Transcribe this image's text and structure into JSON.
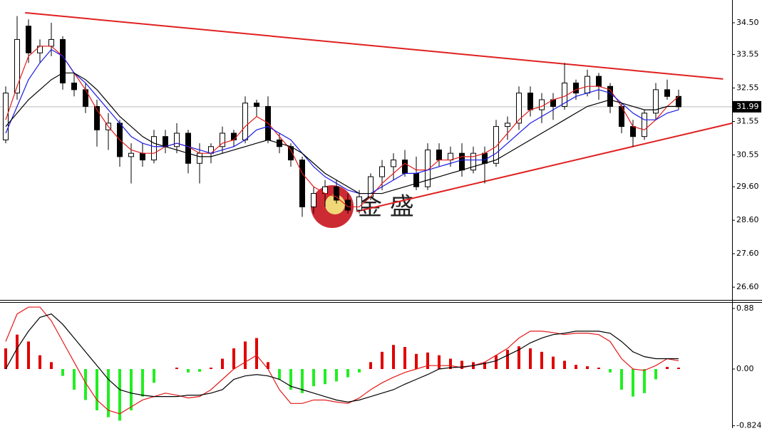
{
  "chart_data": [
    {
      "type": "candlestick",
      "open": [
        31.0,
        32.4,
        34.4,
        33.6,
        33.8,
        34.0,
        32.7,
        32.5,
        32.0,
        31.3,
        31.5,
        30.5,
        30.6,
        30.4,
        31.1,
        30.8,
        31.2,
        30.3,
        30.6,
        30.8,
        31.2,
        31.0,
        32.1,
        32.0,
        31.0,
        30.8,
        30.4,
        29.0,
        29.4,
        29.6,
        29.2,
        28.9,
        29.3,
        29.9,
        30.2,
        30.4,
        30.0,
        29.6,
        30.7,
        30.4,
        30.6,
        30.1,
        30.6,
        30.3,
        31.4,
        31.5,
        32.4,
        31.9,
        32.2,
        32.0,
        32.7,
        32.4,
        32.9,
        32.6,
        32.0,
        31.4,
        31.1,
        31.8,
        32.5,
        32.3
      ],
      "high": [
        32.6,
        34.7,
        34.6,
        34.0,
        34.5,
        34.1,
        33.0,
        32.7,
        32.2,
        31.8,
        31.6,
        30.9,
        30.9,
        31.3,
        31.3,
        31.5,
        31.3,
        30.9,
        30.9,
        31.4,
        31.3,
        32.3,
        32.2,
        32.3,
        31.2,
        30.9,
        30.5,
        29.6,
        29.8,
        29.8,
        29.4,
        29.5,
        30.0,
        30.4,
        30.6,
        30.7,
        30.5,
        30.9,
        30.9,
        30.8,
        30.9,
        30.8,
        30.8,
        31.6,
        31.7,
        32.6,
        32.6,
        32.4,
        32.4,
        33.3,
        32.8,
        33.1,
        33.0,
        32.7,
        32.1,
        31.6,
        31.9,
        32.7,
        32.8,
        32.5
      ],
      "low": [
        30.9,
        32.2,
        33.3,
        33.3,
        33.5,
        32.5,
        32.3,
        31.8,
        30.8,
        30.7,
        30.2,
        29.7,
        30.2,
        30.3,
        30.6,
        30.6,
        30.0,
        29.7,
        30.3,
        30.6,
        30.8,
        30.9,
        31.7,
        30.9,
        30.6,
        30.2,
        28.7,
        28.8,
        29.0,
        29.1,
        28.8,
        28.8,
        29.2,
        29.5,
        29.8,
        29.9,
        29.5,
        29.5,
        30.2,
        30.2,
        29.9,
        30.0,
        29.7,
        30.2,
        31.0,
        31.3,
        31.7,
        31.5,
        31.6,
        31.9,
        32.2,
        32.3,
        32.2,
        31.8,
        31.2,
        30.8,
        31.0,
        31.6,
        32.2,
        31.9
      ],
      "close": [
        32.4,
        34.0,
        33.6,
        33.8,
        34.0,
        32.7,
        32.5,
        32.0,
        31.3,
        31.5,
        30.5,
        30.6,
        30.4,
        31.1,
        30.8,
        31.2,
        30.3,
        30.6,
        30.8,
        31.2,
        31.0,
        32.1,
        32.0,
        31.0,
        30.8,
        30.4,
        29.0,
        29.4,
        29.6,
        29.2,
        28.9,
        29.3,
        29.9,
        30.2,
        30.4,
        30.0,
        29.6,
        30.7,
        30.4,
        30.6,
        30.1,
        30.6,
        30.3,
        31.4,
        31.5,
        32.4,
        31.9,
        32.2,
        32.0,
        32.7,
        32.4,
        32.9,
        32.6,
        32.0,
        31.4,
        31.1,
        31.8,
        32.5,
        32.3,
        31.99
      ],
      "up_color": "#ffffff",
      "down_color": "#000000",
      "series": [
        {
          "color": "#e41a1a",
          "values": [
            31.6,
            32.6,
            33.5,
            33.8,
            33.8,
            33.5,
            33.0,
            32.5,
            31.9,
            31.4,
            31.0,
            30.7,
            30.6,
            30.6,
            30.8,
            30.9,
            30.8,
            30.6,
            30.6,
            30.9,
            31.0,
            31.4,
            31.7,
            31.5,
            31.1,
            30.7,
            30.0,
            29.6,
            29.4,
            29.3,
            29.0,
            29.0,
            29.3,
            29.7,
            30.0,
            30.3,
            30.1,
            30.1,
            30.4,
            30.4,
            30.5,
            30.5,
            30.6,
            30.8,
            31.2,
            31.6,
            31.9,
            32.0,
            32.2,
            32.3,
            32.5,
            32.6,
            32.6,
            32.5,
            32.0,
            31.4,
            31.3,
            31.6,
            32.0,
            32.3
          ]
        },
        {
          "color": "#1a1ae4",
          "values": [
            31.2,
            32.0,
            32.8,
            33.3,
            33.7,
            33.5,
            33.0,
            32.7,
            32.3,
            31.9,
            31.5,
            31.1,
            30.9,
            30.8,
            30.8,
            30.9,
            30.8,
            30.7,
            30.6,
            30.7,
            30.8,
            31.0,
            31.3,
            31.4,
            31.2,
            31.0,
            30.6,
            30.2,
            29.9,
            29.7,
            29.5,
            29.4,
            29.4,
            29.6,
            29.8,
            30.0,
            30.0,
            30.1,
            30.2,
            30.3,
            30.4,
            30.4,
            30.4,
            30.6,
            30.9,
            31.2,
            31.5,
            31.7,
            31.9,
            32.1,
            32.3,
            32.4,
            32.5,
            32.4,
            32.1,
            31.8,
            31.6,
            31.6,
            31.8,
            31.9
          ]
        },
        {
          "color": "#000000",
          "values": [
            31.4,
            31.8,
            32.2,
            32.5,
            32.8,
            33.0,
            33.0,
            32.8,
            32.5,
            32.1,
            31.7,
            31.4,
            31.1,
            30.9,
            30.8,
            30.7,
            30.6,
            30.5,
            30.5,
            30.6,
            30.7,
            30.8,
            30.9,
            31.0,
            30.9,
            30.8,
            30.6,
            30.3,
            30.0,
            29.8,
            29.6,
            29.4,
            29.4,
            29.4,
            29.5,
            29.6,
            29.7,
            29.8,
            29.9,
            30.0,
            30.1,
            30.2,
            30.3,
            30.4,
            30.6,
            30.8,
            31.0,
            31.2,
            31.4,
            31.6,
            31.8,
            32.0,
            32.1,
            32.2,
            32.1,
            32.0,
            31.9,
            31.9,
            32.0,
            32.0
          ]
        }
      ],
      "trendlines": [
        {
          "color": "#e02020",
          "x": [
            1.7,
            62.9
          ],
          "y": [
            34.8,
            32.82
          ]
        },
        {
          "color": "#e02020",
          "x": [
            30.75,
            63.7
          ],
          "y": [
            28.86,
            31.5
          ]
        }
      ],
      "last_price": 31.99,
      "watermark": "金 盛",
      "ylim": [
        26.24,
        35.18
      ],
      "yticks": [
        {
          "value": 34.5,
          "label": "34.50"
        },
        33.55,
        32.55,
        31.55,
        30.55,
        {
          "value": 29.6,
          "label": "29.60"
        },
        {
          "value": 28.6,
          "label": "28.60"
        },
        {
          "value": 27.6,
          "label": "27.60"
        },
        {
          "value": 26.6,
          "label": "26.60"
        }
      ]
    },
    {
      "type": "macd",
      "histogram": [
        0.3,
        0.5,
        0.4,
        0.2,
        0.1,
        -0.1,
        -0.3,
        -0.45,
        -0.6,
        -0.7,
        -0.75,
        -0.6,
        -0.4,
        -0.2,
        0.0,
        0.02,
        -0.05,
        -0.04,
        0.02,
        0.15,
        0.3,
        0.4,
        0.45,
        0.1,
        -0.15,
        -0.3,
        -0.35,
        -0.25,
        -0.22,
        -0.18,
        -0.12,
        -0.05,
        0.1,
        0.25,
        0.35,
        0.32,
        0.22,
        0.24,
        0.2,
        0.15,
        0.12,
        0.1,
        0.1,
        0.2,
        0.28,
        0.33,
        0.3,
        0.25,
        0.18,
        0.12,
        0.06,
        0.04,
        0.02,
        -0.05,
        -0.3,
        -0.4,
        -0.35,
        -0.15,
        0.03,
        0.02
      ],
      "up_color": "#e00000",
      "down_color": "#22ee22",
      "series": [
        {
          "color": "#e41a1a",
          "values": [
            0.4,
            0.8,
            0.9,
            0.9,
            0.7,
            0.4,
            0.1,
            -0.2,
            -0.45,
            -0.6,
            -0.65,
            -0.55,
            -0.45,
            -0.4,
            -0.35,
            -0.38,
            -0.42,
            -0.4,
            -0.3,
            -0.15,
            0.0,
            0.1,
            0.2,
            0.0,
            -0.3,
            -0.5,
            -0.5,
            -0.45,
            -0.45,
            -0.48,
            -0.5,
            -0.42,
            -0.3,
            -0.2,
            -0.12,
            -0.05,
            0.0,
            0.05,
            0.05,
            0.05,
            0.02,
            0.05,
            0.1,
            0.2,
            0.3,
            0.45,
            0.55,
            0.55,
            0.53,
            0.5,
            0.52,
            0.52,
            0.5,
            0.4,
            0.15,
            0.0,
            -0.02,
            0.05,
            0.15,
            0.12
          ]
        },
        {
          "color": "#000000",
          "values": [
            0.0,
            0.3,
            0.55,
            0.75,
            0.8,
            0.65,
            0.45,
            0.25,
            0.05,
            -0.15,
            -0.3,
            -0.35,
            -0.38,
            -0.4,
            -0.4,
            -0.4,
            -0.38,
            -0.38,
            -0.35,
            -0.3,
            -0.15,
            -0.1,
            -0.08,
            -0.1,
            -0.15,
            -0.25,
            -0.3,
            -0.35,
            -0.4,
            -0.45,
            -0.48,
            -0.45,
            -0.4,
            -0.35,
            -0.3,
            -0.22,
            -0.15,
            -0.08,
            0.0,
            0.02,
            0.03,
            0.05,
            0.08,
            0.12,
            0.2,
            0.28,
            0.38,
            0.45,
            0.5,
            0.52,
            0.55,
            0.55,
            0.55,
            0.52,
            0.4,
            0.25,
            0.18,
            0.15,
            0.15,
            0.15
          ]
        }
      ],
      "ylim": [
        -0.859,
        0.973
      ],
      "yticks": [
        0.88,
        {
          "value": 0,
          "label": "0.00"
        },
        -0.824
      ]
    }
  ]
}
